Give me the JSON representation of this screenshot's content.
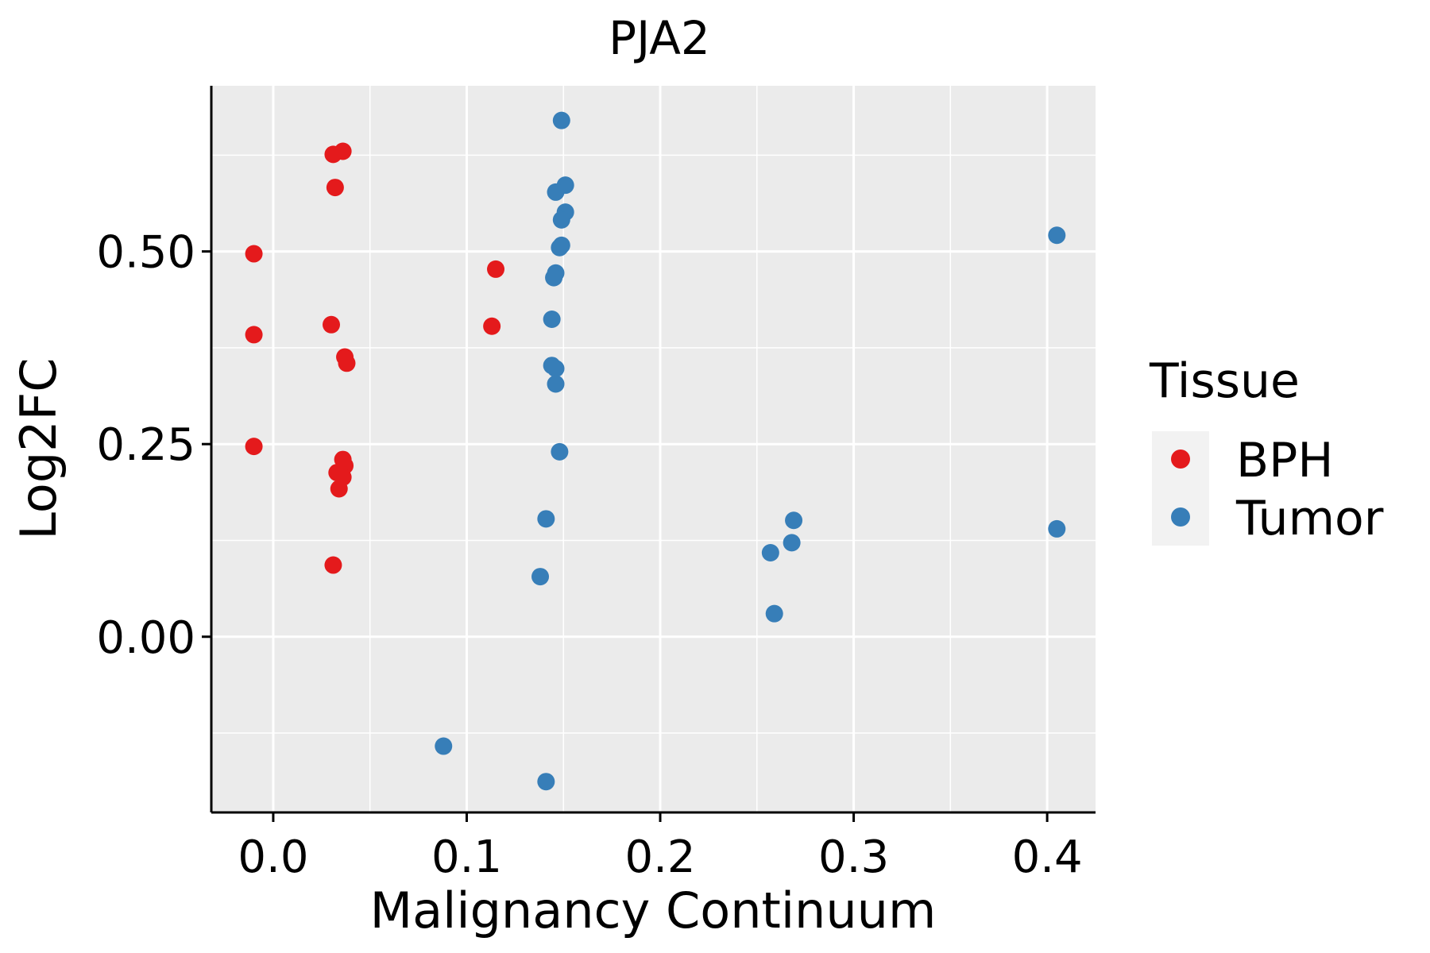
{
  "chart_data": {
    "type": "scatter",
    "title": "PJA2",
    "xlabel": "Malignancy Continuum",
    "ylabel": "Log2FC",
    "xlim": [
      -0.032,
      0.425
    ],
    "ylim": [
      -0.228,
      0.715
    ],
    "x_ticks": [
      0.0,
      0.1,
      0.2,
      0.3,
      0.4
    ],
    "x_tick_labels": [
      "0.0",
      "0.1",
      "0.2",
      "0.3",
      "0.4"
    ],
    "y_ticks": [
      0.0,
      0.25,
      0.5
    ],
    "y_tick_labels": [
      "0.00",
      "0.25",
      "0.50"
    ],
    "grid": true,
    "legend": {
      "title": "Tissue",
      "position": "right",
      "entries": [
        "BPH",
        "Tumor"
      ]
    },
    "series": [
      {
        "name": "BPH",
        "color": "#E41A1C",
        "points": [
          {
            "x": -0.01,
            "y": 0.497
          },
          {
            "x": -0.01,
            "y": 0.392
          },
          {
            "x": -0.01,
            "y": 0.247
          },
          {
            "x": 0.031,
            "y": 0.626
          },
          {
            "x": 0.036,
            "y": 0.63
          },
          {
            "x": 0.032,
            "y": 0.583
          },
          {
            "x": 0.03,
            "y": 0.405
          },
          {
            "x": 0.037,
            "y": 0.363
          },
          {
            "x": 0.038,
            "y": 0.355
          },
          {
            "x": 0.036,
            "y": 0.23
          },
          {
            "x": 0.037,
            "y": 0.222
          },
          {
            "x": 0.033,
            "y": 0.213
          },
          {
            "x": 0.036,
            "y": 0.207
          },
          {
            "x": 0.034,
            "y": 0.192
          },
          {
            "x": 0.031,
            "y": 0.093
          },
          {
            "x": 0.115,
            "y": 0.477
          },
          {
            "x": 0.113,
            "y": 0.403
          }
        ]
      },
      {
        "name": "Tumor",
        "color": "#377EB8",
        "points": [
          {
            "x": 0.149,
            "y": 0.67
          },
          {
            "x": 0.151,
            "y": 0.586
          },
          {
            "x": 0.146,
            "y": 0.577
          },
          {
            "x": 0.151,
            "y": 0.551
          },
          {
            "x": 0.149,
            "y": 0.541
          },
          {
            "x": 0.149,
            "y": 0.508
          },
          {
            "x": 0.148,
            "y": 0.505
          },
          {
            "x": 0.146,
            "y": 0.472
          },
          {
            "x": 0.145,
            "y": 0.466
          },
          {
            "x": 0.144,
            "y": 0.412
          },
          {
            "x": 0.144,
            "y": 0.352
          },
          {
            "x": 0.146,
            "y": 0.348
          },
          {
            "x": 0.146,
            "y": 0.328
          },
          {
            "x": 0.148,
            "y": 0.24
          },
          {
            "x": 0.141,
            "y": 0.153
          },
          {
            "x": 0.138,
            "y": 0.078
          },
          {
            "x": 0.088,
            "y": -0.142
          },
          {
            "x": 0.141,
            "y": -0.188
          },
          {
            "x": 0.269,
            "y": 0.151
          },
          {
            "x": 0.268,
            "y": 0.122
          },
          {
            "x": 0.257,
            "y": 0.109
          },
          {
            "x": 0.259,
            "y": 0.03
          },
          {
            "x": 0.405,
            "y": 0.521
          },
          {
            "x": 0.405,
            "y": 0.14
          }
        ]
      }
    ]
  }
}
